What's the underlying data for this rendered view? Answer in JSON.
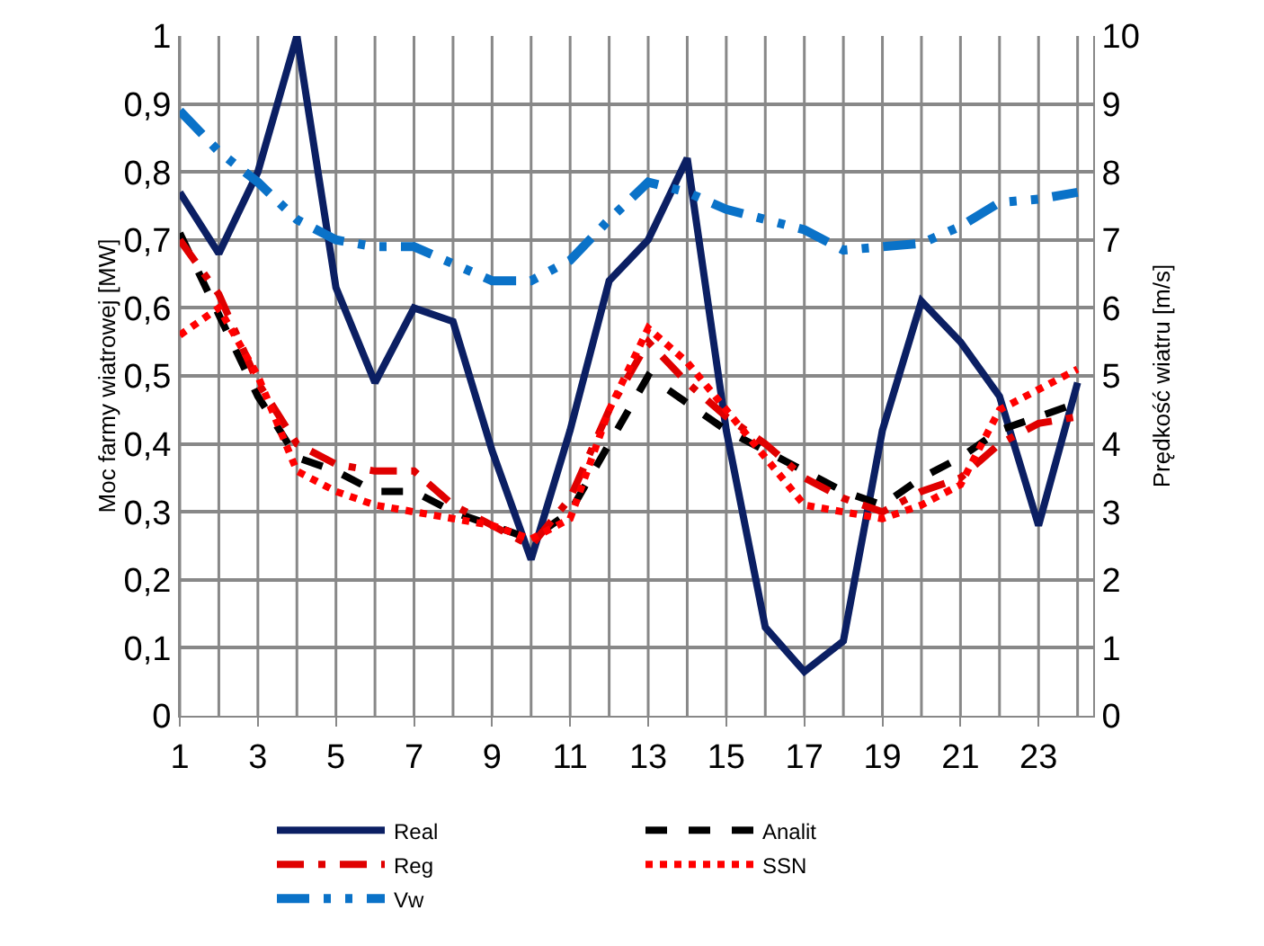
{
  "chart_data": {
    "type": "line",
    "ylabel": "Moc farmy wiatrowej [MW]",
    "y2label": "Prędkość wiatru [m/s]",
    "x": [
      1,
      2,
      3,
      4,
      5,
      6,
      7,
      8,
      9,
      10,
      11,
      12,
      13,
      14,
      15,
      16,
      17,
      18,
      19,
      20,
      21,
      22,
      23,
      24
    ],
    "xlim": [
      1,
      24.4
    ],
    "xticks": [
      1,
      3,
      5,
      7,
      9,
      11,
      13,
      15,
      17,
      19,
      21,
      23
    ],
    "ylim": [
      0,
      1
    ],
    "yticks": [
      {
        "value": 0,
        "label": "0"
      },
      {
        "value": 0.1,
        "label": "0,1"
      },
      {
        "value": 0.2,
        "label": "0,2"
      },
      {
        "value": 0.3,
        "label": "0,3"
      },
      {
        "value": 0.4,
        "label": "0,4"
      },
      {
        "value": 0.5,
        "label": "0,5"
      },
      {
        "value": 0.6,
        "label": "0,6"
      },
      {
        "value": 0.7,
        "label": "0,7"
      },
      {
        "value": 0.8,
        "label": "0,8"
      },
      {
        "value": 0.9,
        "label": "0,9"
      },
      {
        "value": 1,
        "label": "1"
      }
    ],
    "y2lim": [
      0,
      10
    ],
    "y2ticks": [
      0,
      1,
      2,
      3,
      4,
      5,
      6,
      7,
      8,
      9,
      10
    ],
    "grid": true,
    "legend": "bottom",
    "marker": "none",
    "series": [
      {
        "name": "Real",
        "color": "#0b1f63",
        "line_style": "solid",
        "values": [
          0.77,
          0.68,
          0.8,
          1.0,
          0.63,
          0.49,
          0.6,
          0.58,
          0.39,
          0.23,
          0.42,
          0.64,
          0.7,
          0.82,
          0.42,
          0.13,
          0.065,
          0.11,
          0.42,
          0.61,
          0.55,
          0.47,
          0.28,
          0.49
        ]
      },
      {
        "name": "Analit",
        "color": "#000000",
        "line_style": "dashed",
        "values": [
          0.71,
          0.59,
          0.47,
          0.38,
          0.36,
          0.33,
          0.33,
          0.3,
          0.28,
          0.26,
          0.3,
          0.4,
          0.5,
          0.46,
          0.42,
          0.39,
          0.36,
          0.33,
          0.31,
          0.35,
          0.38,
          0.42,
          0.44,
          0.46
        ]
      },
      {
        "name": "Reg",
        "color": "#e00000",
        "line_style": "dashdot",
        "values": [
          0.7,
          0.62,
          0.49,
          0.4,
          0.37,
          0.36,
          0.36,
          0.31,
          0.28,
          0.25,
          0.32,
          0.45,
          0.55,
          0.49,
          0.44,
          0.4,
          0.35,
          0.32,
          0.3,
          0.33,
          0.35,
          0.4,
          0.43,
          0.44
        ]
      },
      {
        "name": "SSN",
        "color": "#ff0000",
        "line_style": "dotted",
        "values": [
          0.56,
          0.6,
          0.5,
          0.36,
          0.33,
          0.31,
          0.3,
          0.29,
          0.28,
          0.26,
          0.29,
          0.45,
          0.57,
          0.52,
          0.45,
          0.38,
          0.31,
          0.3,
          0.29,
          0.31,
          0.34,
          0.45,
          0.48,
          0.51
        ]
      },
      {
        "name": "Vw",
        "color": "#0a72c8",
        "line_style": "dashdotdot",
        "axis": "y2",
        "values": [
          8.9,
          8.3,
          7.85,
          7.3,
          7.0,
          6.9,
          6.9,
          6.65,
          6.4,
          6.4,
          6.7,
          7.3,
          7.85,
          7.7,
          7.45,
          7.3,
          7.15,
          6.85,
          6.9,
          6.95,
          7.2,
          7.55,
          7.6,
          7.7
        ]
      }
    ]
  }
}
